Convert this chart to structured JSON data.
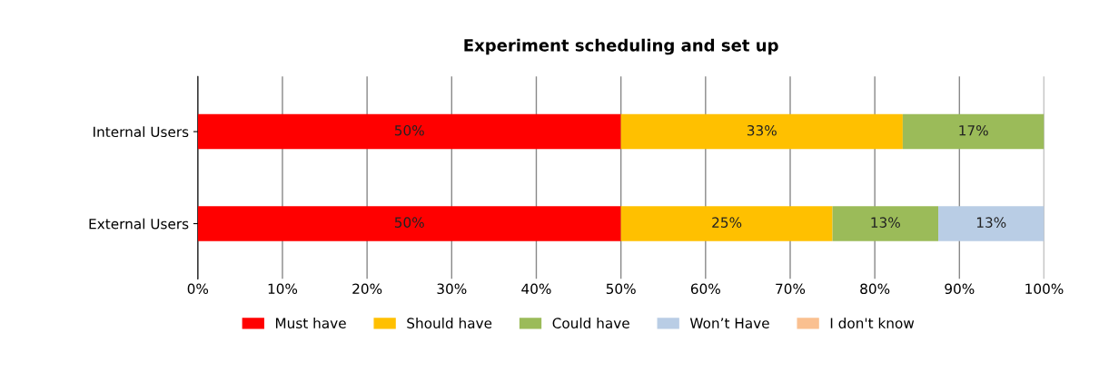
{
  "chart_data": {
    "type": "bar",
    "title": "Experiment scheduling and set up",
    "orientation": "horizontal",
    "stacked": true,
    "categories": [
      "Internal Users",
      "External Users"
    ],
    "series": [
      {
        "name": "Must have",
        "color": "#ff0000",
        "values": [
          50,
          50
        ],
        "value_labels": [
          "50%",
          "50%"
        ]
      },
      {
        "name": "Should have",
        "color": "#ffc000",
        "values": [
          33.3,
          25
        ],
        "value_labels": [
          "33%",
          "25%"
        ]
      },
      {
        "name": "Could have",
        "color": "#9bbb59",
        "values": [
          16.7,
          12.5
        ],
        "value_labels": [
          "17%",
          "13%"
        ]
      },
      {
        "name": "Won’t Have",
        "color": "#b9cde5",
        "values": [
          0,
          12.5
        ],
        "value_labels": [
          null,
          "13%"
        ]
      },
      {
        "name": "I don't know",
        "color": "#fac090",
        "values": [
          0,
          0
        ],
        "value_labels": [
          null,
          null
        ]
      }
    ],
    "xlim": [
      0,
      100
    ],
    "xticks": [
      {
        "value": 0,
        "label": "0%"
      },
      {
        "value": 10,
        "label": "10%"
      },
      {
        "value": 20,
        "label": "20%"
      },
      {
        "value": 30,
        "label": "30%"
      },
      {
        "value": 40,
        "label": "40%"
      },
      {
        "value": 50,
        "label": "50%"
      },
      {
        "value": 60,
        "label": "60%"
      },
      {
        "value": 70,
        "label": "70%"
      },
      {
        "value": 80,
        "label": "80%"
      },
      {
        "value": 90,
        "label": "90%"
      },
      {
        "value": 100,
        "label": "100%"
      }
    ],
    "grid": "x",
    "legend": "bottom"
  }
}
